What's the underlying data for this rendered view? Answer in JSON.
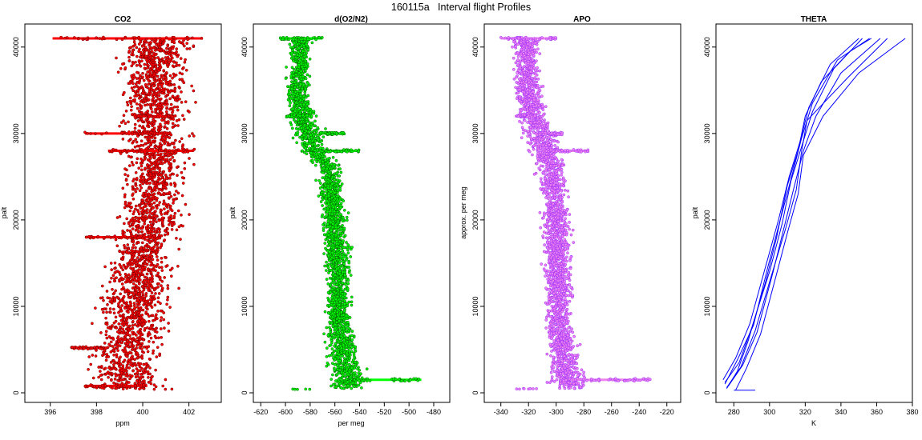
{
  "main_title": "160115a   Interval flight Profiles",
  "chart_data": [
    {
      "type": "scatter",
      "title": "CO2",
      "xlabel": "ppm",
      "ylabel": "palt",
      "xlim": [
        394.9,
        403.4
      ],
      "ylim": [
        0,
        41000
      ],
      "xticks": [
        396,
        398,
        400,
        402
      ],
      "yticks": [
        0,
        10000,
        20000,
        30000,
        40000
      ],
      "point_color": "#ff0000",
      "outline_color": "#6b0000",
      "series": [
        {
          "profile": [
            {
              "y": 500,
              "x": 399.4,
              "spread": 1.2
            },
            {
              "y": 3000,
              "x": 399.2,
              "spread": 1.3
            },
            {
              "y": 8000,
              "x": 399.5,
              "spread": 1.2
            },
            {
              "y": 14000,
              "x": 399.9,
              "spread": 1.1
            },
            {
              "y": 20000,
              "x": 400.3,
              "spread": 1.1
            },
            {
              "y": 26000,
              "x": 400.6,
              "spread": 1.1
            },
            {
              "y": 30000,
              "x": 400.5,
              "spread": 1.1
            },
            {
              "y": 35000,
              "x": 400.6,
              "spread": 1.2
            },
            {
              "y": 41000,
              "x": 400.6,
              "spread": 1.3
            }
          ],
          "level_lines": [
            {
              "y": 41000,
              "x": [
                396.1,
                402.6
              ]
            },
            {
              "y": 32000,
              "x": [
                399.6,
                401.4
              ]
            },
            {
              "y": 30000,
              "x": [
                397.5,
                401.2
              ]
            },
            {
              "y": 28000,
              "x": [
                398.5,
                402.2
              ]
            },
            {
              "y": 18000,
              "x": [
                397.5,
                400.5
              ]
            },
            {
              "y": 5200,
              "x": [
                396.9,
                398.5
              ]
            },
            {
              "y": 800,
              "x": [
                397.5,
                400.2
              ]
            }
          ]
        }
      ]
    },
    {
      "type": "scatter",
      "title": "d(O2/N2)",
      "xlabel": "per meg",
      "ylabel": "palt",
      "xlim": [
        -626,
        -467
      ],
      "ylim": [
        0,
        41000
      ],
      "xticks": [
        -620,
        -600,
        -580,
        -560,
        -540,
        -520,
        -500,
        -480
      ],
      "yticks": [
        0,
        10000,
        20000,
        30000,
        40000
      ],
      "point_color": "#00ff00",
      "outline_color": "#005a00",
      "series": [
        {
          "profile": [
            {
              "y": 500,
              "x": -548,
              "spread": 12
            },
            {
              "y": 3000,
              "x": -552,
              "spread": 11
            },
            {
              "y": 8000,
              "x": -557,
              "spread": 8
            },
            {
              "y": 14000,
              "x": -557,
              "spread": 8
            },
            {
              "y": 20000,
              "x": -560,
              "spread": 8
            },
            {
              "y": 26000,
              "x": -565,
              "spread": 8
            },
            {
              "y": 29000,
              "x": -580,
              "spread": 10
            },
            {
              "y": 34000,
              "x": -590,
              "spread": 8
            },
            {
              "y": 41000,
              "x": -588,
              "spread": 8
            }
          ],
          "level_lines": [
            {
              "y": 41000,
              "x": [
                -605,
                -570
              ]
            },
            {
              "y": 32000,
              "x": [
                -600,
                -582
              ]
            },
            {
              "y": 30000,
              "x": [
                -572,
                -552
              ]
            },
            {
              "y": 28000,
              "x": [
                -568,
                -540
              ]
            },
            {
              "y": 1500,
              "x": [
                -548,
                -490
              ]
            }
          ]
        }
      ]
    },
    {
      "type": "scatter",
      "title": "APO",
      "xlabel": "",
      "ylabel": "approx. per meg",
      "xlim": [
        -352,
        -210
      ],
      "ylim": [
        0,
        41000
      ],
      "xticks": [
        -340,
        -320,
        -300,
        -280,
        -260,
        -240,
        -220
      ],
      "yticks": [
        0,
        10000,
        20000,
        30000,
        40000
      ],
      "point_color": "#ee82ee",
      "outline_color": "#9b30ff",
      "series": [
        {
          "profile": [
            {
              "y": 500,
              "x": -290,
              "spread": 11
            },
            {
              "y": 3000,
              "x": -293,
              "spread": 10
            },
            {
              "y": 8000,
              "x": -298,
              "spread": 8
            },
            {
              "y": 14000,
              "x": -298,
              "spread": 8
            },
            {
              "y": 20000,
              "x": -300,
              "spread": 8
            },
            {
              "y": 26000,
              "x": -303,
              "spread": 8
            },
            {
              "y": 29000,
              "x": -310,
              "spread": 10
            },
            {
              "y": 34000,
              "x": -320,
              "spread": 8
            },
            {
              "y": 41000,
              "x": -322,
              "spread": 8
            }
          ],
          "level_lines": [
            {
              "y": 41000,
              "x": [
                -340,
                -300
              ]
            },
            {
              "y": 32000,
              "x": [
                -330,
                -315
              ]
            },
            {
              "y": 30000,
              "x": [
                -312,
                -295
              ]
            },
            {
              "y": 28000,
              "x": [
                -310,
                -276
              ]
            },
            {
              "y": 1500,
              "x": [
                -290,
                -232
              ]
            }
          ]
        }
      ]
    },
    {
      "type": "line",
      "title": "THETA",
      "xlabel": "K",
      "ylabel": "palt",
      "xlim": [
        270,
        380
      ],
      "ylim": [
        0,
        41000
      ],
      "xticks": [
        280,
        300,
        320,
        340,
        360,
        380
      ],
      "yticks": [
        0,
        10000,
        20000,
        30000,
        40000
      ],
      "line_color": "#0000ff",
      "series": [
        {
          "x": [
            276,
            282,
            288,
            298,
            304,
            310,
            316,
            320,
            329,
            345,
            357
          ],
          "y": [
            500,
            2500,
            6000,
            13000,
            18000,
            24000,
            28000,
            32000,
            36000,
            39500,
            41000
          ]
        },
        {
          "x": [
            275,
            283,
            290,
            300,
            307,
            312,
            318,
            324,
            336,
            352
          ],
          "y": [
            1200,
            3500,
            7500,
            14000,
            19500,
            24500,
            28500,
            32500,
            37500,
            41000
          ]
        },
        {
          "x": [
            277,
            285,
            293,
            302,
            308,
            314,
            319,
            326,
            340,
            362
          ],
          "y": [
            800,
            3200,
            7000,
            14000,
            19000,
            24000,
            28000,
            32000,
            37000,
            41000
          ]
        },
        {
          "x": [
            274,
            281,
            289,
            297,
            305,
            311,
            317,
            322,
            334,
            350
          ],
          "y": [
            1500,
            4000,
            8000,
            14000,
            20000,
            25000,
            29000,
            33000,
            38000,
            41000
          ]
        },
        {
          "x": [
            276,
            284,
            292,
            301,
            309,
            315,
            318,
            321,
            344,
            366
          ],
          "y": [
            600,
            3000,
            7200,
            13500,
            19000,
            23500,
            28000,
            31500,
            36500,
            41000
          ]
        },
        {
          "x": [
            275,
            282,
            291,
            299,
            306,
            313,
            318,
            324,
            338,
            356
          ],
          "y": [
            1000,
            3800,
            7800,
            14500,
            20000,
            25500,
            29500,
            33500,
            38500,
            41000
          ]
        },
        {
          "x": [
            281,
            287,
            295,
            303,
            310,
            316,
            319,
            330,
            350,
            376
          ],
          "y": [
            300,
            2800,
            6800,
            13000,
            18500,
            23000,
            27500,
            32000,
            37000,
            41000
          ]
        },
        {
          "x": [
            280,
            292
          ],
          "y": [
            300,
            300
          ]
        }
      ]
    }
  ]
}
